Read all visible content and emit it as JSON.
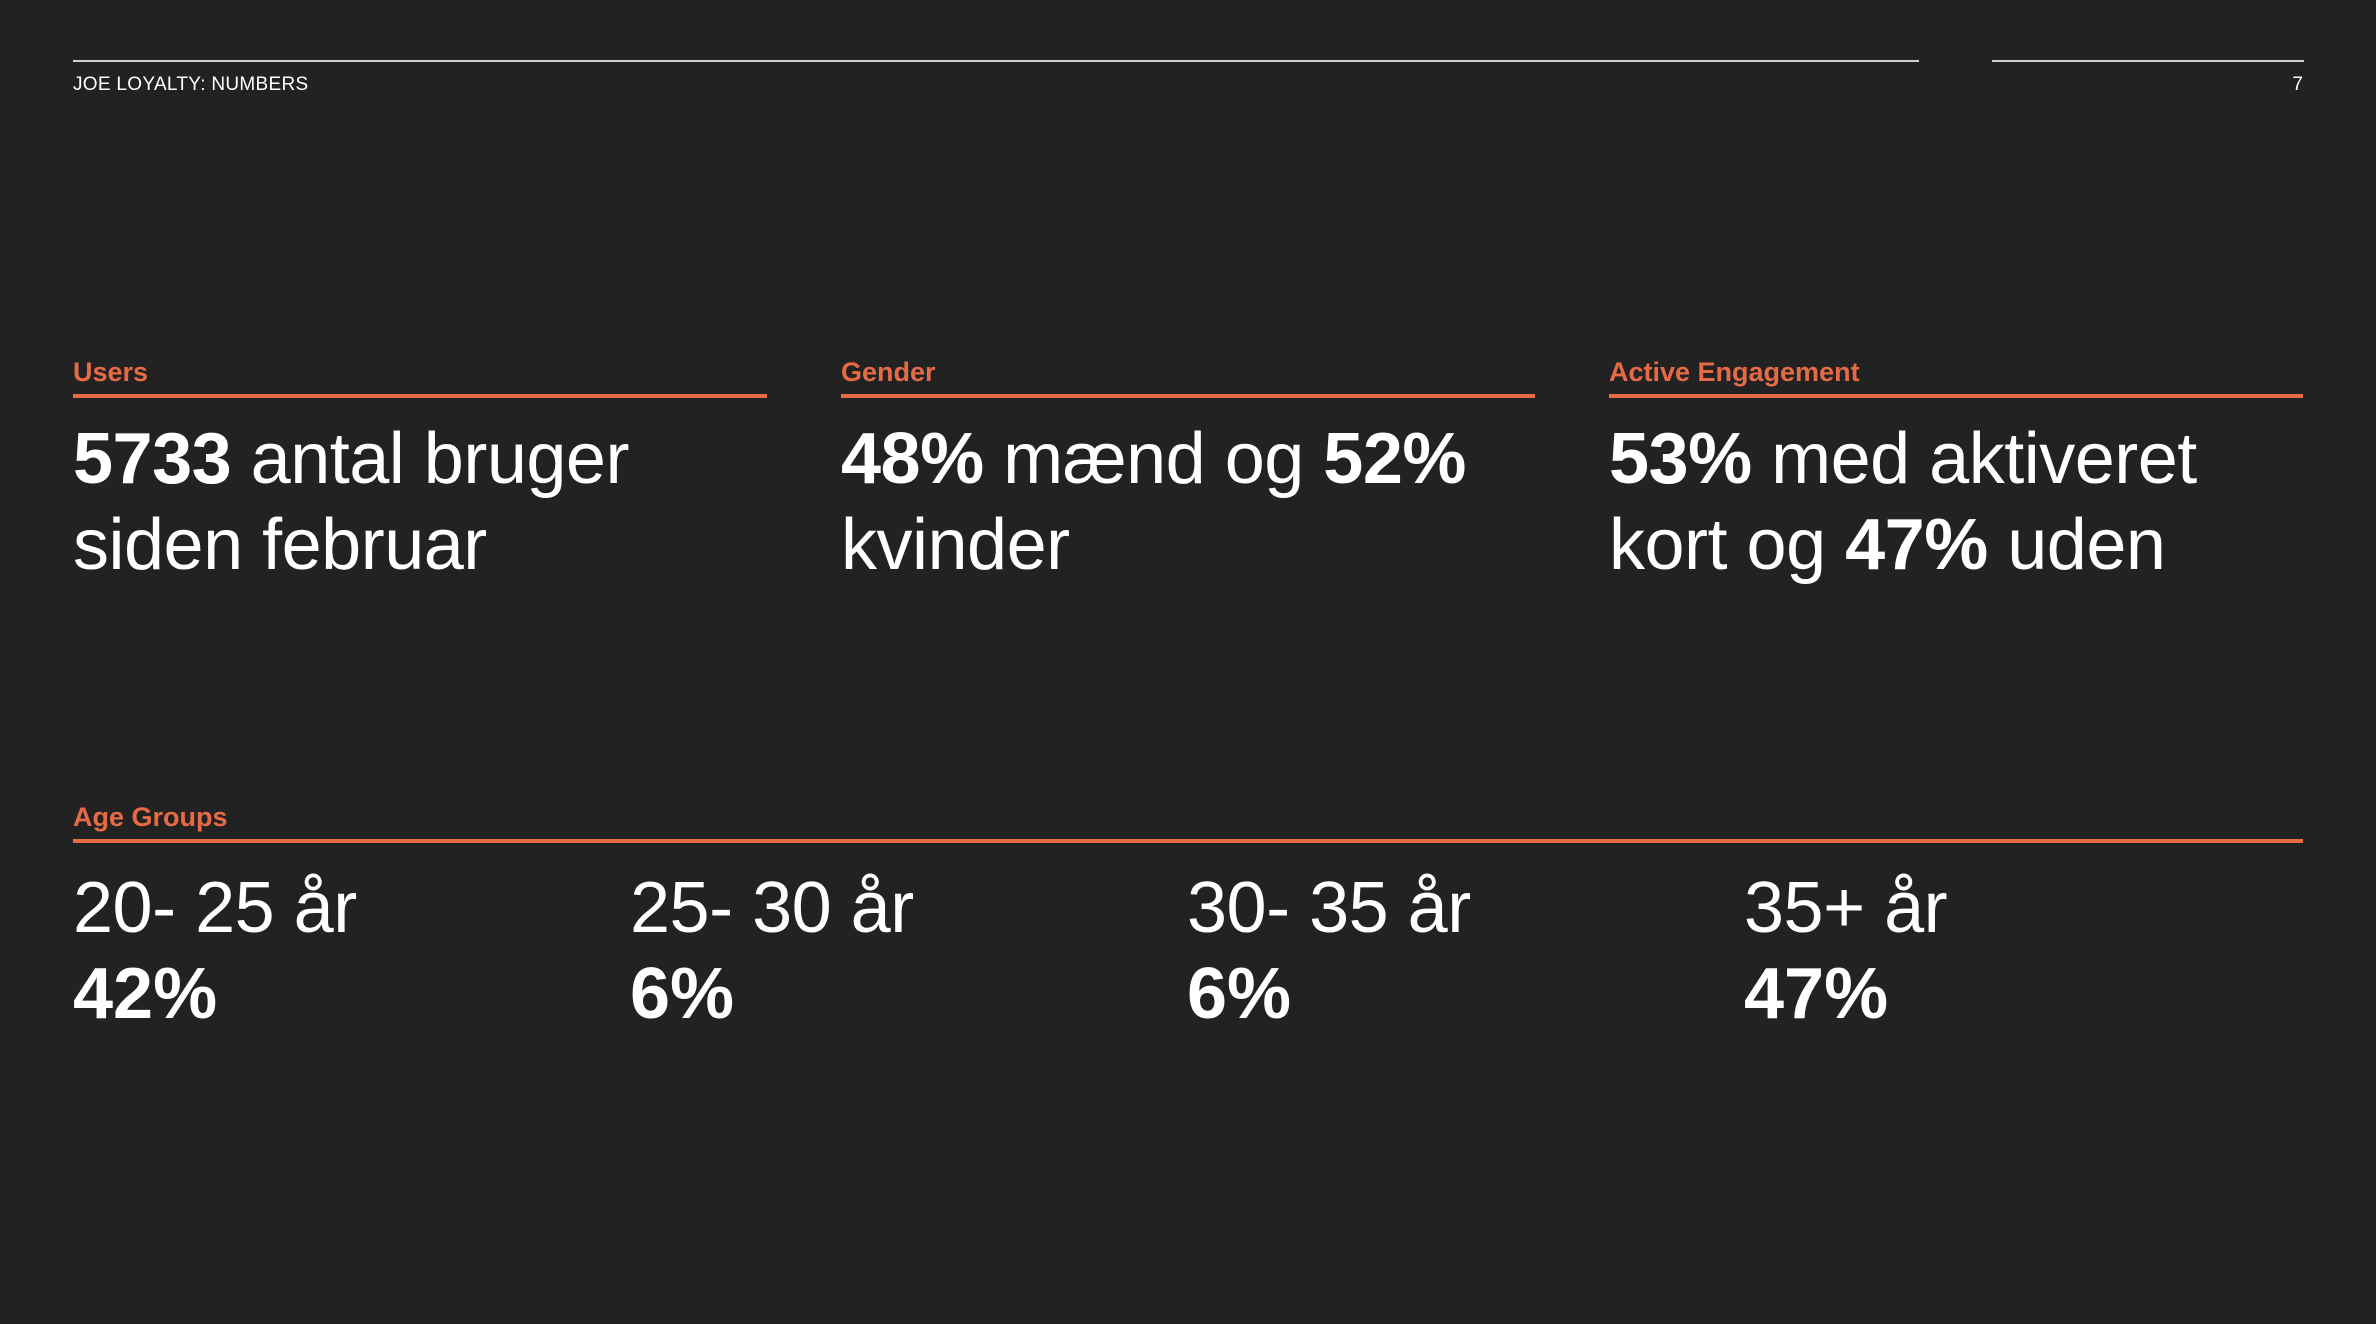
{
  "header": {
    "title": "JOE LOYALTY: NUMBERS",
    "page_number": "7"
  },
  "colors": {
    "background": "#222222",
    "accent": "#e56a45",
    "text": "#ffffff"
  },
  "stats": {
    "users": {
      "label": "Users",
      "value": "5733",
      "text_1": " antal bruger",
      "text_2": "siden februar"
    },
    "gender": {
      "label": "Gender",
      "value_men": "48%",
      "text_men": " mænd og ",
      "value_women": "52%",
      "text_women": "kvinder"
    },
    "engagement": {
      "label": "Active Engagement",
      "value_active": "53%",
      "text_active": " med aktiveret",
      "text_card": "kort og ",
      "value_without": "47%",
      "text_without": " uden"
    }
  },
  "age_groups": {
    "label": "Age Groups",
    "items": [
      {
        "range": "20- 25 år",
        "value": "42%"
      },
      {
        "range": "25- 30 år",
        "value": "6%"
      },
      {
        "range": "30- 35 år",
        "value": "6%"
      },
      {
        "range": "35+ år",
        "value": "47%"
      }
    ]
  }
}
